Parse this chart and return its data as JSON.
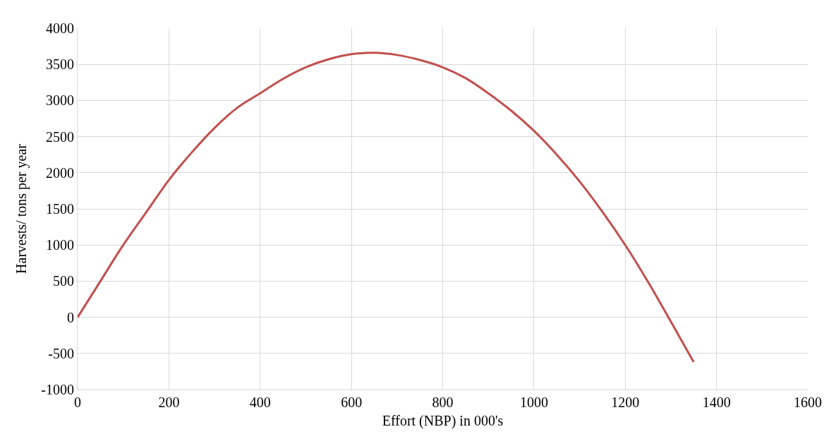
{
  "chart_data": {
    "type": "line",
    "xlabel": "Effort (NBP) in 000's",
    "ylabel": "Harvests/ tons per year",
    "x": [
      0,
      50,
      100,
      150,
      200,
      250,
      300,
      350,
      400,
      450,
      500,
      550,
      600,
      650,
      700,
      750,
      800,
      850,
      900,
      950,
      1000,
      1050,
      1100,
      1150,
      1200,
      1250,
      1300,
      1350
    ],
    "series": [
      {
        "color": "#c0504d",
        "values": [
          0,
          500,
          1000,
          1450,
          1900,
          2280,
          2620,
          2900,
          3100,
          3300,
          3460,
          3570,
          3640,
          3660,
          3630,
          3560,
          3460,
          3310,
          3100,
          2860,
          2580,
          2250,
          1880,
          1460,
          1000,
          490,
          -60,
          -620
        ]
      }
    ],
    "xlim": [
      0,
      1600
    ],
    "xticks": [
      0,
      200,
      400,
      600,
      800,
      1000,
      1200,
      1400,
      1600
    ],
    "ylim": [
      -1000,
      4000
    ],
    "yticks": [
      -1000,
      -500,
      0,
      500,
      1000,
      1500,
      2000,
      2500,
      3000,
      3500,
      4000
    ],
    "grid": true,
    "marker": "none",
    "line_style": "solid"
  }
}
